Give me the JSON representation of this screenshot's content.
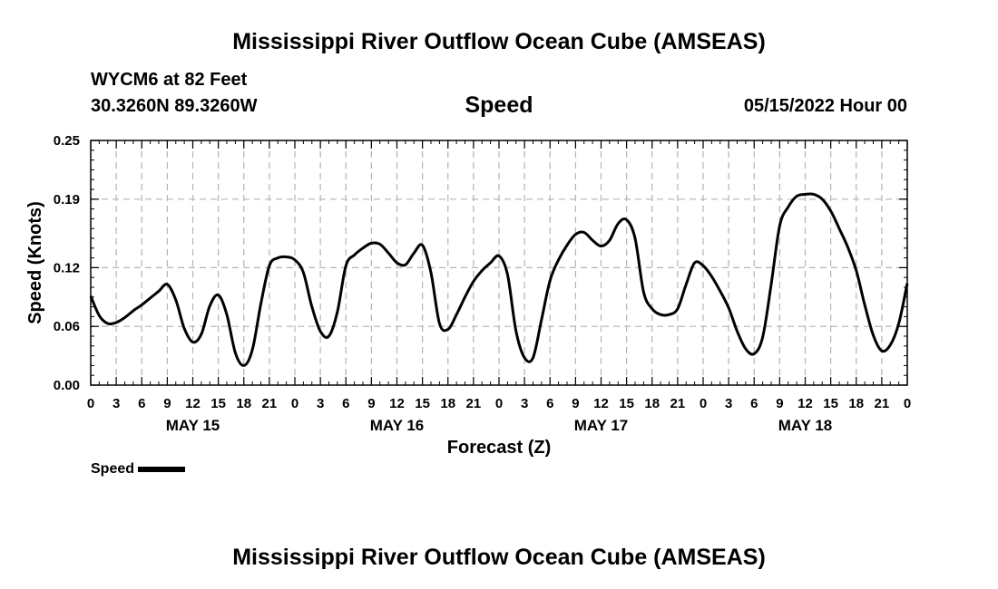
{
  "header": {
    "title": "Mississippi River Outflow Ocean Cube (AMSEAS)",
    "station": "WYCM6 at 82 Feet",
    "coords": "30.3260N  89.3260W",
    "variable": "Speed",
    "date": "05/15/2022 Hour 00"
  },
  "footer": {
    "title": "Mississippi River Outflow Ocean Cube (AMSEAS)"
  },
  "legend": {
    "label": "Speed"
  },
  "colors": {
    "line": "#000000",
    "grid": "#b4b4b4"
  },
  "chart_data": {
    "type": "line",
    "title": "Speed",
    "xlabel": "Forecast (Z)",
    "ylabel": "Speed (Knots)",
    "ylim": [
      0,
      0.25
    ],
    "xlim": [
      0,
      96
    ],
    "yticks": [
      0.0,
      0.06,
      0.12,
      0.19,
      0.25
    ],
    "ytick_labels": [
      "0.00",
      "0.06",
      "0.12",
      "0.19",
      "0.25"
    ],
    "xtick_hours": [
      0,
      3,
      6,
      9,
      12,
      15,
      18,
      21,
      24,
      27,
      30,
      33,
      36,
      39,
      42,
      45,
      48,
      51,
      54,
      57,
      60,
      63,
      66,
      69,
      72,
      75,
      78,
      81,
      84,
      87,
      90,
      93,
      96
    ],
    "xtick_labels": [
      "0",
      "3",
      "6",
      "9",
      "12",
      "15",
      "18",
      "21",
      "0",
      "3",
      "6",
      "9",
      "12",
      "15",
      "18",
      "21",
      "0",
      "3",
      "6",
      "9",
      "12",
      "15",
      "18",
      "21",
      "0",
      "3",
      "6",
      "9",
      "12",
      "15",
      "18",
      "21",
      "0"
    ],
    "day_labels": [
      {
        "hour": 12,
        "label": "MAY 15"
      },
      {
        "hour": 36,
        "label": "MAY 16"
      },
      {
        "hour": 60,
        "label": "MAY 17"
      },
      {
        "hour": 84,
        "label": "MAY 18"
      }
    ],
    "grid": true,
    "series": [
      {
        "name": "Speed",
        "x": [
          0,
          1,
          2,
          3,
          4,
          5,
          6,
          7,
          8,
          9,
          10,
          11,
          12,
          13,
          14,
          15,
          16,
          17,
          18,
          19,
          20,
          21,
          22,
          23,
          24,
          25,
          26,
          27,
          28,
          29,
          30,
          31,
          32,
          33,
          34,
          35,
          36,
          37,
          38,
          39,
          40,
          41,
          42,
          43,
          44,
          45,
          46,
          47,
          48,
          49,
          50,
          51,
          52,
          53,
          54,
          55,
          56,
          57,
          58,
          59,
          60,
          61,
          62,
          63,
          64,
          65,
          66,
          67,
          68,
          69,
          70,
          71,
          72,
          73,
          74,
          75,
          76,
          77,
          78,
          79,
          80,
          81,
          82,
          83,
          84,
          85,
          86,
          87,
          88,
          89,
          90,
          91,
          92,
          93,
          94,
          95,
          96
        ],
        "values": [
          0.091,
          0.071,
          0.063,
          0.064,
          0.069,
          0.076,
          0.082,
          0.089,
          0.096,
          0.103,
          0.087,
          0.058,
          0.044,
          0.052,
          0.081,
          0.092,
          0.072,
          0.033,
          0.02,
          0.036,
          0.083,
          0.122,
          0.13,
          0.131,
          0.128,
          0.115,
          0.08,
          0.055,
          0.05,
          0.075,
          0.122,
          0.133,
          0.14,
          0.145,
          0.144,
          0.135,
          0.125,
          0.123,
          0.135,
          0.143,
          0.115,
          0.063,
          0.057,
          0.072,
          0.09,
          0.106,
          0.117,
          0.125,
          0.132,
          0.113,
          0.055,
          0.028,
          0.028,
          0.067,
          0.107,
          0.128,
          0.143,
          0.154,
          0.156,
          0.148,
          0.142,
          0.148,
          0.165,
          0.169,
          0.15,
          0.095,
          0.078,
          0.072,
          0.072,
          0.078,
          0.103,
          0.125,
          0.122,
          0.111,
          0.096,
          0.079,
          0.055,
          0.037,
          0.032,
          0.049,
          0.103,
          0.163,
          0.182,
          0.193,
          0.195,
          0.195,
          0.19,
          0.178,
          0.16,
          0.141,
          0.117,
          0.082,
          0.051,
          0.035,
          0.041,
          0.063,
          0.104
        ]
      }
    ]
  }
}
